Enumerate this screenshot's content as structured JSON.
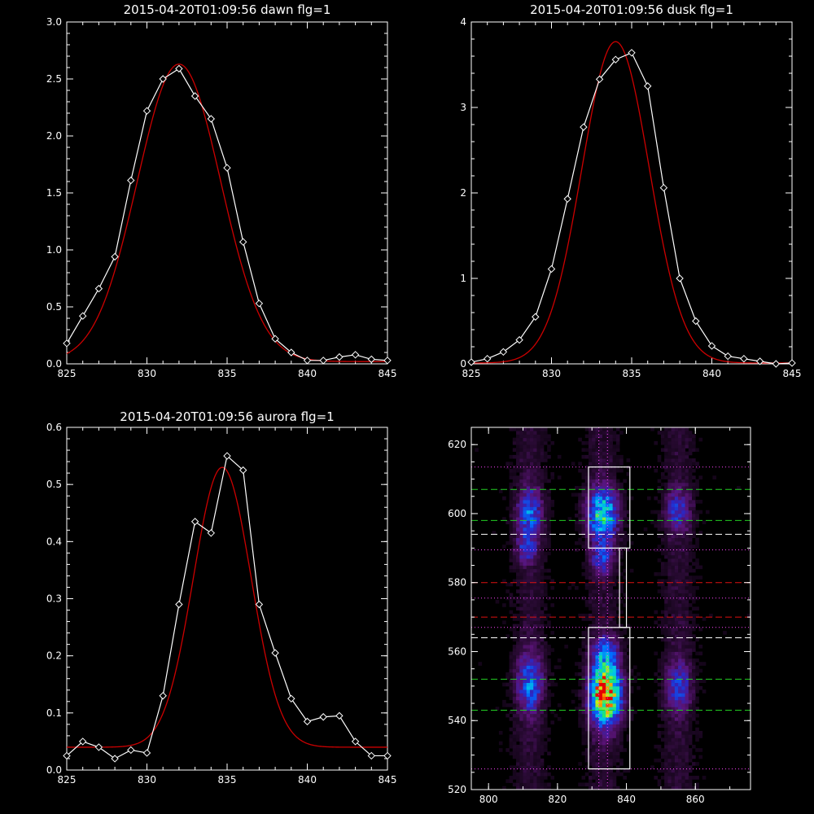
{
  "colors": {
    "background": "#000000",
    "axes": "#ffffff",
    "data_line": "#ffffff",
    "fit_line": "#cc0000",
    "green_dash": "#22cc22",
    "red_dash": "#dd1111",
    "white_dash": "#ffffff",
    "magenta_dots": "#ff44ff"
  },
  "chart_data": [
    {
      "type": "line",
      "title": "2015-04-20T01:09:56 dawn flg=1",
      "xlim": [
        825,
        845
      ],
      "ylim": [
        0,
        3.0
      ],
      "xticks": [
        "825",
        "830",
        "835",
        "840",
        "845"
      ],
      "yticks": [
        "0.0",
        "0.5",
        "1.0",
        "1.5",
        "2.0",
        "2.5",
        "3.0"
      ],
      "series": [
        {
          "style": "white-diamonds",
          "x": [
            825,
            826,
            827,
            828,
            829,
            830,
            831,
            832,
            833,
            834,
            835,
            836,
            837,
            838,
            839,
            840,
            841,
            842,
            843,
            844,
            845
          ],
          "y": [
            0.18,
            0.42,
            0.66,
            0.94,
            1.61,
            2.22,
            2.5,
            2.59,
            2.35,
            2.15,
            1.72,
            1.07,
            0.53,
            0.22,
            0.1,
            0.03,
            0.03,
            0.06,
            0.08,
            0.04,
            0.03
          ]
        },
        {
          "style": "red-gaussian-fit",
          "amplitude": 2.61,
          "center": 832.0,
          "sigma": 2.6,
          "offset": 0.02
        }
      ]
    },
    {
      "type": "line",
      "title": "2015-04-20T01:09:56 dusk flg=1",
      "xlim": [
        825,
        845
      ],
      "ylim": [
        0,
        4
      ],
      "xticks": [
        "825",
        "830",
        "835",
        "840",
        "845"
      ],
      "yticks": [
        "0",
        "1",
        "2",
        "3",
        "4"
      ],
      "series": [
        {
          "style": "white-diamonds",
          "x": [
            825,
            826,
            827,
            828,
            829,
            830,
            831,
            832,
            833,
            834,
            835,
            836,
            837,
            838,
            839,
            840,
            841,
            842,
            843,
            844,
            845
          ],
          "y": [
            0.02,
            0.06,
            0.14,
            0.28,
            0.55,
            1.11,
            1.93,
            2.77,
            3.33,
            3.56,
            3.64,
            3.25,
            2.06,
            1.0,
            0.5,
            0.21,
            0.09,
            0.06,
            0.03,
            0.0,
            0.01
          ]
        },
        {
          "style": "red-gaussian-fit",
          "amplitude": 3.76,
          "center": 834.0,
          "sigma": 2.1,
          "offset": 0.01
        }
      ]
    },
    {
      "type": "line",
      "title": "2015-04-20T01:09:56 aurora flg=1",
      "xlim": [
        825,
        845
      ],
      "ylim": [
        0,
        0.6
      ],
      "xticks": [
        "825",
        "830",
        "835",
        "840",
        "845"
      ],
      "yticks": [
        "0.0",
        "0.1",
        "0.2",
        "0.3",
        "0.4",
        "0.5",
        "0.6"
      ],
      "series": [
        {
          "style": "white-diamonds",
          "x": [
            825,
            826,
            827,
            828,
            829,
            830,
            831,
            832,
            833,
            834,
            835,
            836,
            837,
            838,
            839,
            840,
            841,
            842,
            843,
            844,
            845
          ],
          "y": [
            0.025,
            0.05,
            0.04,
            0.02,
            0.035,
            0.03,
            0.13,
            0.29,
            0.435,
            0.415,
            0.55,
            0.525,
            0.29,
            0.205,
            0.125,
            0.085,
            0.093,
            0.095,
            0.05,
            0.025,
            0.025
          ]
        },
        {
          "style": "red-gaussian-fit",
          "amplitude": 0.49,
          "center": 834.7,
          "sigma": 1.8,
          "offset": 0.04
        }
      ]
    },
    {
      "type": "heatmap",
      "title": "",
      "xlim": [
        795,
        876
      ],
      "ylim": [
        520,
        625
      ],
      "xticks": [
        "800",
        "820",
        "840",
        "860"
      ],
      "yticks": [
        "520",
        "540",
        "560",
        "580",
        "600",
        "620"
      ],
      "blobs": [
        {
          "x": 812,
          "y": 600,
          "sx": 2.5,
          "sy": 5,
          "amp": 0.35
        },
        {
          "x": 811,
          "y": 590,
          "sx": 2,
          "sy": 3,
          "amp": 0.25
        },
        {
          "x": 812,
          "y": 551,
          "sx": 2.5,
          "sy": 6,
          "amp": 0.38
        },
        {
          "x": 833,
          "y": 600,
          "sx": 3,
          "sy": 5,
          "amp": 0.6
        },
        {
          "x": 833,
          "y": 587,
          "sx": 2,
          "sy": 3,
          "amp": 0.3
        },
        {
          "x": 834,
          "y": 548,
          "sx": 3,
          "sy": 6,
          "amp": 1.0
        },
        {
          "x": 834,
          "y": 560,
          "sx": 2.5,
          "sy": 3,
          "amp": 0.35
        },
        {
          "x": 855,
          "y": 601,
          "sx": 2.5,
          "sy": 4,
          "amp": 0.28
        },
        {
          "x": 855,
          "y": 550,
          "sx": 2.5,
          "sy": 5,
          "amp": 0.3
        }
      ],
      "boxes": [
        {
          "x0": 829,
          "x1": 841,
          "y0": 590,
          "y1": 613.5
        },
        {
          "x0": 838,
          "x1": 840,
          "y0": 567,
          "y1": 590
        },
        {
          "x0": 829,
          "x1": 841,
          "y0": 526,
          "y1": 567
        }
      ],
      "green_dashed_y": [
        607,
        598,
        552,
        543
      ],
      "red_dashed_y": [
        580,
        570
      ],
      "white_dashed_y": [
        594,
        564
      ],
      "magenta_dotted_y": [
        613.5,
        589.5,
        575.5,
        567,
        526
      ],
      "magenta_dotted_x": [
        832,
        834.5
      ]
    }
  ]
}
